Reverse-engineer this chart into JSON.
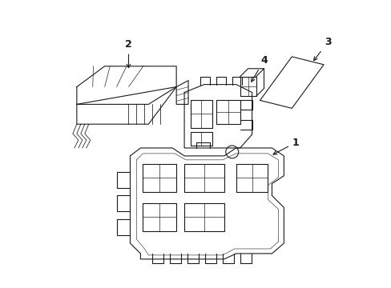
{
  "background_color": "#ffffff",
  "line_color": "#1a1a1a",
  "line_width": 0.8,
  "label_fontsize": 9,
  "arrow_color": "#000000"
}
